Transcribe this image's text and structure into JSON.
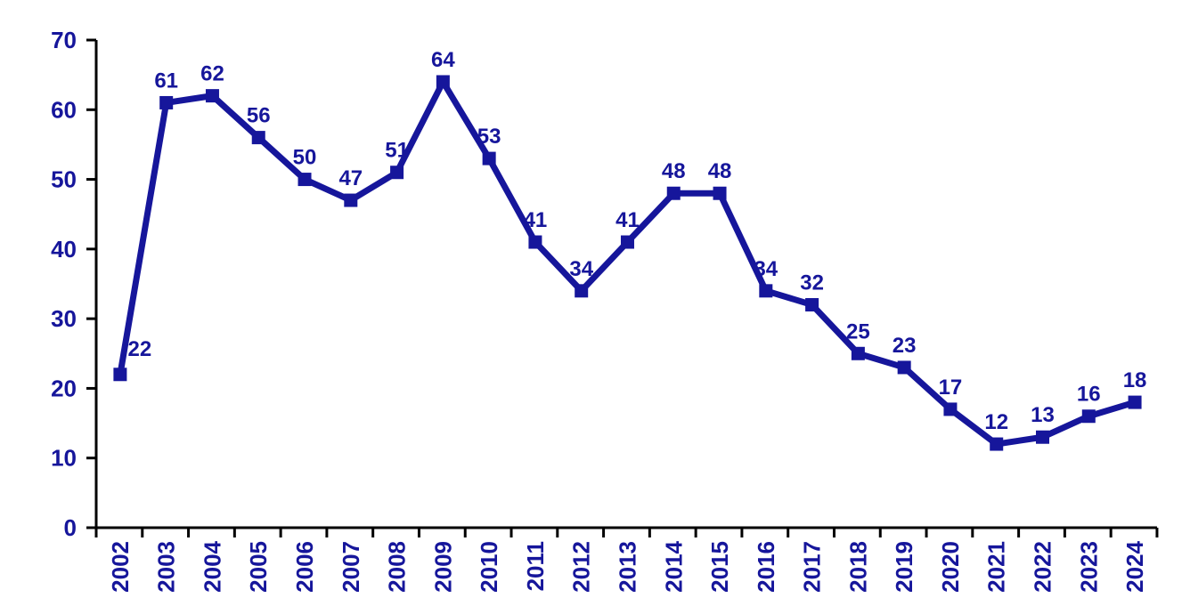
{
  "chart_data": {
    "type": "line",
    "title": "",
    "xlabel": "",
    "ylabel": "",
    "categories": [
      "2002",
      "2003",
      "2004",
      "2005",
      "2006",
      "2007",
      "2008",
      "2009",
      "2010",
      "2011",
      "2012",
      "2013",
      "2014",
      "2015",
      "2016",
      "2017",
      "2018",
      "2019",
      "2020",
      "2021",
      "2022",
      "2023",
      "2024"
    ],
    "series": [
      {
        "name": "series-1",
        "values": [
          22,
          61,
          62,
          56,
          50,
          47,
          51,
          64,
          53,
          41,
          34,
          41,
          48,
          48,
          34,
          32,
          25,
          23,
          17,
          12,
          13,
          16,
          18
        ],
        "color": "#16169B",
        "marker": "square"
      }
    ],
    "data_labels": true,
    "label_color": "#16169B",
    "axis_color": "#000000",
    "background": "#FFFFFF",
    "ylim": [
      0,
      70
    ],
    "yticks": [
      0,
      10,
      20,
      30,
      40,
      50,
      60,
      70
    ],
    "grid": false,
    "legend_position": "none",
    "x_tick_rotation": -90,
    "label_offsets": [
      {
        "index": 0,
        "dx": 22,
        "dy": -4
      }
    ]
  }
}
